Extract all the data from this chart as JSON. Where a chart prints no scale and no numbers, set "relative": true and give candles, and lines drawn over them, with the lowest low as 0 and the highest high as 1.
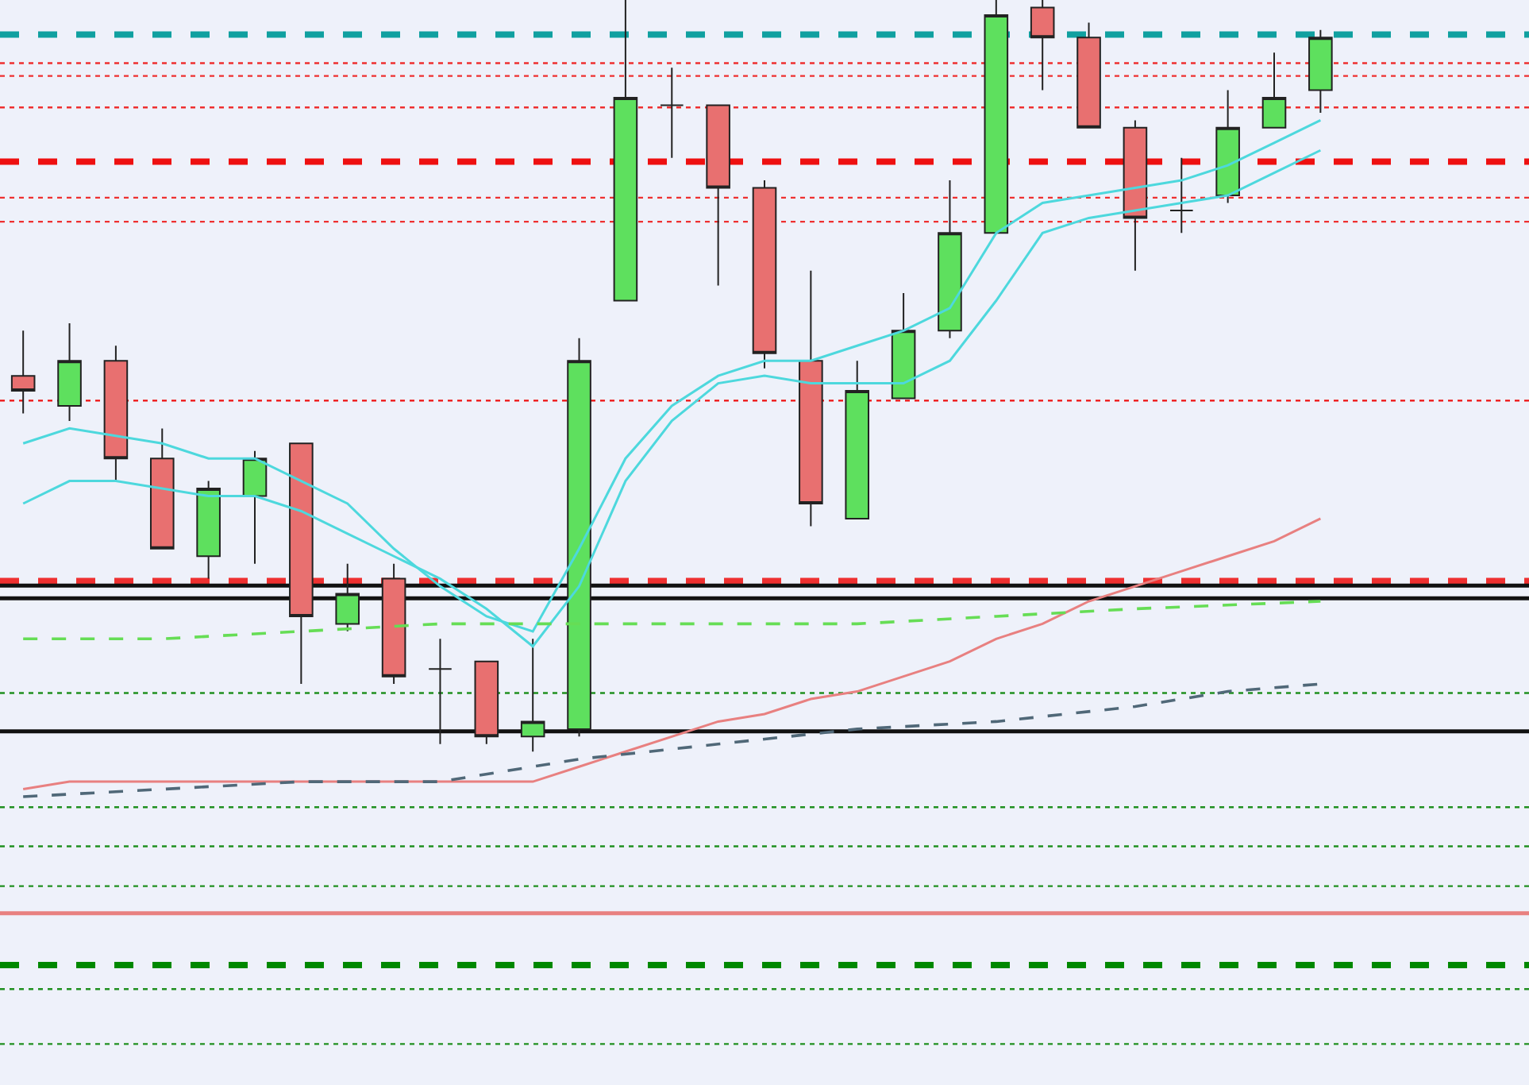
{
  "chart_data": {
    "type": "candlestick",
    "relative": true,
    "grid": false,
    "categories": [
      null,
      null,
      null,
      null,
      null,
      null,
      null,
      null,
      null,
      null,
      null,
      null,
      null,
      null,
      null,
      null,
      null,
      null,
      null,
      null,
      null,
      null,
      null,
      null,
      null,
      null,
      null,
      null,
      null
    ],
    "ohlc": [
      [
        0.5,
        0.56,
        0.45,
        0.48
      ],
      [
        0.46,
        0.57,
        0.44,
        0.52
      ],
      [
        0.52,
        0.54,
        0.36,
        0.39
      ],
      [
        0.39,
        0.43,
        0.27,
        0.27
      ],
      [
        0.26,
        0.36,
        0.23,
        0.35
      ],
      [
        0.34,
        0.4,
        0.25,
        0.39
      ],
      [
        0.41,
        0.41,
        0.09,
        0.18
      ],
      [
        0.17,
        0.25,
        0.16,
        0.21
      ],
      [
        0.23,
        0.25,
        0.09,
        0.1
      ],
      [
        0.11,
        0.15,
        0.01,
        0.11
      ],
      [
        0.12,
        0.12,
        0.01,
        0.02
      ],
      [
        0.02,
        0.15,
        0.0,
        0.04
      ],
      [
        0.03,
        0.55,
        0.02,
        0.52
      ],
      [
        0.6,
        1.0,
        0.6,
        0.87
      ],
      [
        0.86,
        0.91,
        0.79,
        0.86
      ],
      [
        0.86,
        0.86,
        0.62,
        0.75
      ],
      [
        0.75,
        0.76,
        0.51,
        0.53
      ],
      [
        0.52,
        0.64,
        0.3,
        0.33
      ],
      [
        0.31,
        0.52,
        0.31,
        0.48
      ],
      [
        0.47,
        0.61,
        0.47,
        0.56
      ],
      [
        0.56,
        0.76,
        0.55,
        0.69
      ],
      [
        0.69,
        1.0,
        0.69,
        0.98
      ],
      [
        0.99,
        1.0,
        0.88,
        0.95
      ],
      [
        0.95,
        0.97,
        0.83,
        0.83
      ],
      [
        0.83,
        0.84,
        0.64,
        0.71
      ],
      [
        0.72,
        0.79,
        0.69,
        0.72
      ],
      [
        0.74,
        0.88,
        0.73,
        0.83
      ],
      [
        0.83,
        0.93,
        0.83,
        0.87
      ],
      [
        0.88,
        0.96,
        0.85,
        0.95
      ]
    ],
    "colors": [
      "#e87070",
      "#5ee05e",
      "#e87070",
      "#e87070",
      "#5ee05e",
      "#5ee05e",
      "#e87070",
      "#5ee05e",
      "#e87070",
      "#222222",
      "#e87070",
      "#5ee05e",
      "#5ee05e",
      "#5ee05e",
      "#222222",
      "#e87070",
      "#e87070",
      "#e87070",
      "#5ee05e",
      "#5ee05e",
      "#5ee05e",
      "#5ee05e",
      "#e87070",
      "#e87070",
      "#e87070",
      "#222222",
      "#5ee05e",
      "#5ee05e",
      "#5ee05e"
    ],
    "series": [
      {
        "type": "line",
        "color": "#4dd8dd",
        "line_style": "solid",
        "values": [
          0.41,
          0.43,
          0.42,
          0.41,
          0.39,
          0.39,
          0.36,
          0.33,
          0.27,
          0.22,
          0.18,
          0.16,
          0.27,
          0.39,
          0.46,
          0.5,
          0.52,
          0.52,
          0.54,
          0.56,
          0.59,
          0.69,
          0.73,
          0.74,
          0.75,
          0.76,
          0.78,
          0.81,
          0.84
        ]
      },
      {
        "type": "line",
        "color": "#4dd8dd",
        "line_style": "solid",
        "values": [
          0.33,
          0.36,
          0.36,
          0.35,
          0.34,
          0.34,
          0.32,
          0.29,
          0.26,
          0.23,
          0.19,
          0.14,
          0.22,
          0.36,
          0.44,
          0.49,
          0.5,
          0.49,
          0.49,
          0.49,
          0.52,
          0.6,
          0.69,
          0.71,
          0.72,
          0.73,
          0.74,
          0.77,
          0.8
        ]
      },
      {
        "type": "line",
        "color": "#e88080",
        "line_style": "solid",
        "values": [
          -0.05,
          -0.04,
          null,
          -0.04,
          null,
          -0.04,
          null,
          -0.04,
          null,
          -0.04,
          null,
          -0.04,
          -0.02,
          0.0,
          0.02,
          0.04,
          0.05,
          0.07,
          0.08,
          0.1,
          0.12,
          0.15,
          0.17,
          0.2,
          0.22,
          0.24,
          0.26,
          0.28,
          0.31
        ]
      },
      {
        "type": "line",
        "color": "#66dd55",
        "line_style": "dashed",
        "values": [
          0.15,
          null,
          null,
          0.15,
          null,
          null,
          0.16,
          null,
          null,
          0.17,
          null,
          null,
          0.17,
          null,
          null,
          0.17,
          null,
          null,
          0.17,
          null,
          null,
          0.18,
          null,
          null,
          0.19,
          null,
          null,
          null,
          0.2
        ]
      },
      {
        "type": "line",
        "color": "#506878",
        "line_style": "dashed",
        "values": [
          -0.06,
          null,
          null,
          -0.05,
          null,
          null,
          -0.04,
          null,
          null,
          -0.04,
          null,
          null,
          -0.01,
          null,
          null,
          0.01,
          null,
          null,
          0.03,
          null,
          null,
          0.04,
          null,
          null,
          0.06,
          null,
          0.08,
          null,
          0.09
        ]
      }
    ],
    "ref_lines": [
      {
        "axis": "y",
        "value": 0.954,
        "color": "#10a0a0",
        "line_style": "dashed"
      },
      {
        "axis": "y",
        "value": 0.916,
        "color": "#ee3030",
        "line_style": "dotted"
      },
      {
        "axis": "y",
        "value": 0.899,
        "color": "#ee3030",
        "line_style": "dotted"
      },
      {
        "axis": "y",
        "value": 0.857,
        "color": "#ee3030",
        "line_style": "dotted"
      },
      {
        "axis": "y",
        "value": 0.785,
        "color": "#ee1010",
        "line_style": "dashed"
      },
      {
        "axis": "y",
        "value": 0.737,
        "color": "#ee3030",
        "line_style": "dotted"
      },
      {
        "axis": "y",
        "value": 0.705,
        "color": "#ee3030",
        "line_style": "dotted"
      },
      {
        "axis": "y",
        "value": 0.467,
        "color": "#ee1010",
        "line_style": "dotted"
      },
      {
        "axis": "y",
        "value": 0.227,
        "color": "#ee3030",
        "line_style": "dashed"
      },
      {
        "axis": "y",
        "value": 0.221,
        "color": "#111111",
        "line_style": "solid"
      },
      {
        "axis": "y",
        "value": 0.204,
        "color": "#111111",
        "line_style": "solid"
      },
      {
        "axis": "y",
        "value": 0.078,
        "color": "#209020",
        "line_style": "dotted"
      },
      {
        "axis": "y",
        "value": 0.027,
        "color": "#111111",
        "line_style": "solid"
      },
      {
        "axis": "y",
        "value": -0.074,
        "color": "#209020",
        "line_style": "dotted"
      },
      {
        "axis": "y",
        "value": -0.126,
        "color": "#209020",
        "line_style": "dotted"
      },
      {
        "axis": "y",
        "value": -0.179,
        "color": "#209020",
        "line_style": "dotted"
      },
      {
        "axis": "y",
        "value": -0.215,
        "color": "#e88080",
        "line_style": "solid"
      },
      {
        "axis": "y",
        "value": -0.284,
        "color": "#008800",
        "line_style": "dashed"
      },
      {
        "axis": "y",
        "value": -0.316,
        "color": "#209020",
        "line_style": "dotted"
      },
      {
        "axis": "y",
        "value": -0.389,
        "color": "#209020",
        "line_style": "dotted"
      }
    ]
  }
}
